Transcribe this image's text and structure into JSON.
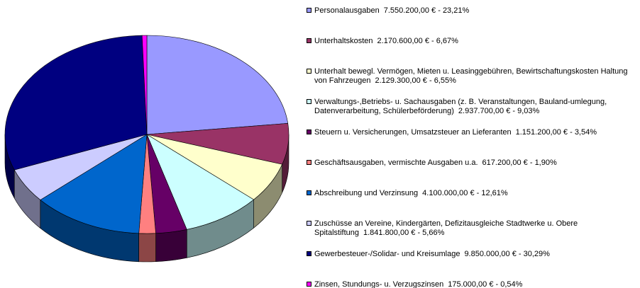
{
  "chart_data": {
    "type": "pie",
    "categories": [
      "Personalausgaben",
      "Unterhaltskosten",
      "Unterhalt bewegl. Vermögen, Mieten u. Leasinggebühren, Bewirtschaftungskosten Haltung von Fahrzeugen",
      "Verwaltungs-,Betriebs- u. Sachausgaben (z. B. Veranstaltungen, Bauland-umlegung, Datenverarbeitung, Schülerbeförderung)",
      "Steuern u. Versicherungen, Umsatzsteuer an Lieferanten",
      "Geschäftsausgaben, vermischte Ausgaben u.a.",
      "Abschreibung und Verzinsung",
      "Zuschüsse an Vereine, Kindergärten, Defizitausgleiche Stadtwerke u. Obere Spitalstiftung",
      "Gewerbesteuer-/Solidar- und Kreisumlage",
      "Zinsen, Stundungs- u. Verzugszinsen"
    ],
    "values": [
      23.21,
      6.67,
      6.55,
      9.03,
      3.54,
      1.9,
      12.61,
      5.66,
      30.29,
      0.54
    ],
    "value_labels": [
      "23,21%",
      "6,67%",
      "6,55%",
      "9,03%",
      "3,54%",
      "1,90%",
      "12,61%",
      "5,66%",
      "30,29%",
      "0,54%"
    ],
    "amounts": [
      7550200,
      2170600,
      2129300,
      2937700,
      1151200,
      617200,
      4100000,
      1841800,
      9850000,
      175000
    ],
    "amount_labels": [
      "7.550.200,00 €",
      "2.170.600,00 €",
      "2.129.300,00 €",
      "2.937.700,00 €",
      "1.151.200,00 €",
      "617.200,00 €",
      "4.100.000,00 €",
      "1.841.800,00 €",
      "9.850.000,00 €",
      "175.000,00 €"
    ],
    "label_separator": " - ",
    "colors": [
      "#9999ff",
      "#993366",
      "#ffffcc",
      "#ccffff",
      "#660066",
      "#ff8080",
      "#0066cc",
      "#ccccff",
      "#000080",
      "#ff00ff"
    ],
    "legend": "right"
  }
}
